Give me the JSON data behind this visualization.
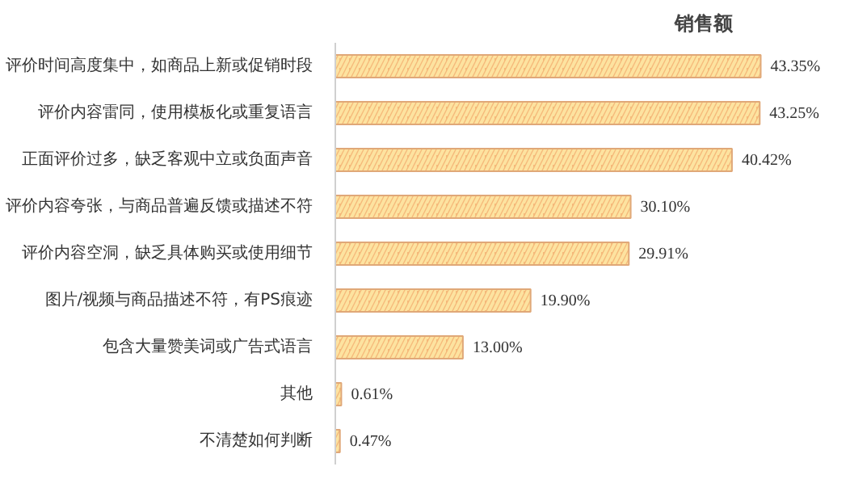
{
  "chart_data": {
    "type": "bar",
    "orientation": "horizontal",
    "title": "销售额",
    "categories": [
      "评价时间高度集中，如商品上新或促销时段",
      "评价内容雷同，使用模板化或重复语言",
      "正面评价过多，缺乏客观中立或负面声音",
      "评价内容夸张，与商品普遍反馈或描述不符",
      "评价内容空洞，缺乏具体购买或使用细节",
      "图片/视频与商品描述不符，有PS痕迹",
      "包含大量赞美词或广告式语言",
      "其他",
      "不清楚如何判断"
    ],
    "values": [
      43.35,
      43.25,
      40.42,
      30.1,
      29.91,
      19.9,
      13.0,
      0.61,
      0.47
    ],
    "value_labels": [
      "43.35%",
      "43.25%",
      "40.42%",
      "30.10%",
      "29.91%",
      "19.90%",
      "13.00%",
      "0.61%",
      "0.47%"
    ],
    "color": "#f5b97a"
  }
}
